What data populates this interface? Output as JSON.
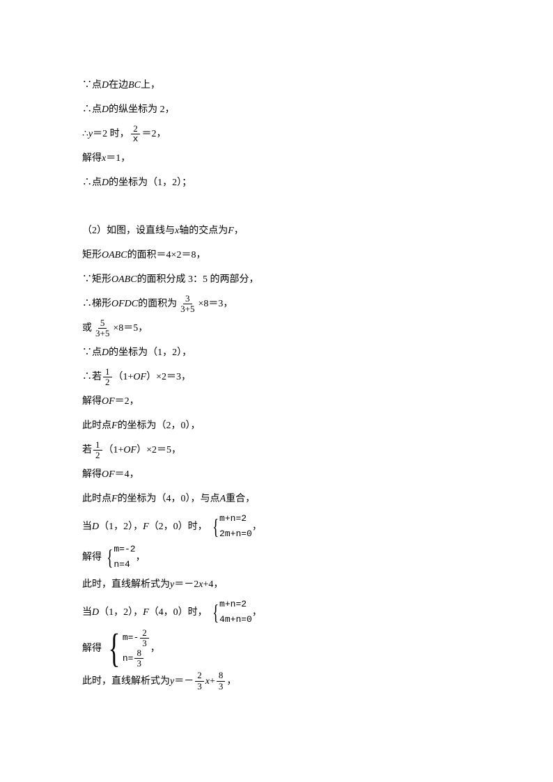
{
  "lines": {
    "l1_pre": "∵点 ",
    "l1_var1": "D",
    "l1_mid": " 在边 ",
    "l1_var2": "BC",
    "l1_post": " 上，",
    "l2_pre": "∴点 ",
    "l2_var": "D",
    "l2_post": " 的纵坐标为 2，",
    "l3_pre": "∴",
    "l3_var": "y",
    "l3_mid": "＝2 时，",
    "l3_frac_num": "2",
    "l3_frac_den": "x",
    "l3_post": "＝2，",
    "l4_pre": "解得 ",
    "l4_var": "x",
    "l4_post": "＝1，",
    "l5_pre": "∴点 ",
    "l5_var": "D",
    "l5_post": " 的坐标为（1，2）；",
    "l6_pre": "（2）如图，设直线与 ",
    "l6_var1": "x",
    "l6_mid": " 轴的交点为 ",
    "l6_var2": "F",
    "l6_post": "，",
    "l7_pre": "矩形 ",
    "l7_var": "OABC",
    "l7_post": " 的面积＝4×2＝8，",
    "l8_pre": "∵矩形 ",
    "l8_var": "OABC",
    "l8_post": " 的面积分成 3：5 的两部分，",
    "l9_pre": "∴梯形 ",
    "l9_var": "OFDC",
    "l9_mid": " 的面积为",
    "l9_num": "3",
    "l9_den": "3+5",
    "l9_post": "×8＝3，",
    "l10_pre": "或",
    "l10_num": "5",
    "l10_den": "3+5",
    "l10_post": "×8＝5，",
    "l11_pre": "∵点 ",
    "l11_var": "D",
    "l11_post": " 的坐标为（1，2），",
    "l12_pre": "∴若",
    "l12_num": "1",
    "l12_den": "2",
    "l12_mid": "（1+",
    "l12_var": "OF",
    "l12_post": "）×2＝3，",
    "l13_pre": "解得 ",
    "l13_var": "OF",
    "l13_post": "＝2，",
    "l14_pre": "此时点 ",
    "l14_var": "F",
    "l14_post": " 的坐标为（2，0），",
    "l15_pre": "若",
    "l15_num": "1",
    "l15_den": "2",
    "l15_mid": "（1+",
    "l15_var": "OF",
    "l15_post": "）×2＝5，",
    "l16_pre": "解得 ",
    "l16_var": "OF",
    "l16_post": "＝4，",
    "l17_pre": "此时点 ",
    "l17_var1": "F",
    "l17_mid": " 的坐标为（4，0），与点 ",
    "l17_var2": "A",
    "l17_post": " 重合，",
    "l18_pre": "当 ",
    "l18_v1": "D",
    "l18_m1": "（1，2），",
    "l18_v2": "F",
    "l18_m2": "（2，0）时，",
    "l18_eq1": "m+n=2",
    "l18_eq2": "2m+n=0",
    "l18_post": "，",
    "l19_pre": "解得",
    "l19_eq1": "m=-2",
    "l19_eq2": "n=4",
    "l19_post": "，",
    "l20_pre": "此时，直线解析式为 ",
    "l20_var": "y",
    "l20_mid": "＝－2",
    "l20_var2": "x",
    "l20_post": "+4，",
    "l21_pre": "当 ",
    "l21_v1": "D",
    "l21_m1": "（1，2），",
    "l21_v2": "F",
    "l21_m2": "（4，0）时，",
    "l21_eq1": "m+n=2",
    "l21_eq2": "4m+n=0",
    "l21_post": "，",
    "l22_pre": "解得",
    "l22_m": "m=-",
    "l22_mnum": "2",
    "l22_mden": "3",
    "l22_n": "n=",
    "l22_nnum": "8",
    "l22_nden": "3",
    "l22_post": "，",
    "l23_pre": "此时，直线解析式为 ",
    "l23_var": "y",
    "l23_mid": "＝－",
    "l23_n1": "2",
    "l23_d1": "3",
    "l23_x": "x",
    "l23_plus": "+",
    "l23_n2": "8",
    "l23_d2": "3",
    "l23_post": "，"
  }
}
